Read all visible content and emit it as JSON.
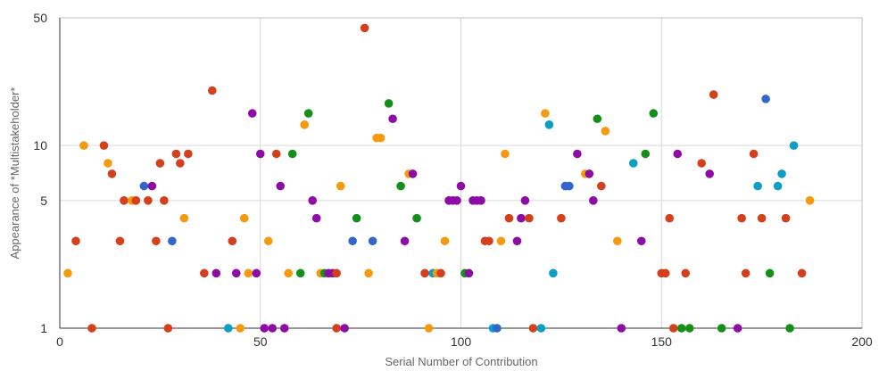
{
  "chart_data": {
    "type": "scatter",
    "title": "",
    "xlabel": "Serial Number of Contribution",
    "ylabel": "Appearance of *Multistakeholder*",
    "xlim": [
      0,
      200
    ],
    "ylim": [
      1,
      50
    ],
    "y_scale": "log",
    "grid": true,
    "x_ticks": [
      0,
      50,
      100,
      150,
      200
    ],
    "x_tick_labels": [
      "0",
      "50",
      "100",
      "150",
      "200"
    ],
    "y_ticks": [
      1,
      5,
      10,
      50
    ],
    "y_tick_labels": [
      "1",
      "5",
      "10",
      "50"
    ],
    "colors": {
      "red": "#d4401c",
      "orange": "#f59a0e",
      "purple": "#8e0ca6",
      "green": "#14901a",
      "blue": "#3366cc",
      "teal": "#0d9ec4"
    },
    "points": [
      {
        "x": 2,
        "y": 2,
        "c": "orange"
      },
      {
        "x": 4,
        "y": 3,
        "c": "red"
      },
      {
        "x": 6,
        "y": 10,
        "c": "orange"
      },
      {
        "x": 8,
        "y": 1,
        "c": "red"
      },
      {
        "x": 11,
        "y": 10,
        "c": "red"
      },
      {
        "x": 12,
        "y": 8,
        "c": "orange"
      },
      {
        "x": 13,
        "y": 7,
        "c": "red"
      },
      {
        "x": 15,
        "y": 3,
        "c": "red"
      },
      {
        "x": 16,
        "y": 5,
        "c": "red"
      },
      {
        "x": 18,
        "y": 5,
        "c": "orange"
      },
      {
        "x": 19,
        "y": 5,
        "c": "red"
      },
      {
        "x": 21,
        "y": 6,
        "c": "blue"
      },
      {
        "x": 22,
        "y": 5,
        "c": "red"
      },
      {
        "x": 23,
        "y": 6,
        "c": "purple"
      },
      {
        "x": 24,
        "y": 3,
        "c": "red"
      },
      {
        "x": 25,
        "y": 8,
        "c": "red"
      },
      {
        "x": 26,
        "y": 5,
        "c": "red"
      },
      {
        "x": 27,
        "y": 1,
        "c": "red"
      },
      {
        "x": 28,
        "y": 3,
        "c": "blue"
      },
      {
        "x": 29,
        "y": 9,
        "c": "red"
      },
      {
        "x": 30,
        "y": 8,
        "c": "red"
      },
      {
        "x": 31,
        "y": 4,
        "c": "orange"
      },
      {
        "x": 32,
        "y": 9,
        "c": "red"
      },
      {
        "x": 36,
        "y": 2,
        "c": "red"
      },
      {
        "x": 38,
        "y": 20,
        "c": "red"
      },
      {
        "x": 39,
        "y": 2,
        "c": "purple"
      },
      {
        "x": 42,
        "y": 1,
        "c": "teal"
      },
      {
        "x": 43,
        "y": 3,
        "c": "red"
      },
      {
        "x": 44,
        "y": 2,
        "c": "purple"
      },
      {
        "x": 45,
        "y": 1,
        "c": "orange"
      },
      {
        "x": 46,
        "y": 4,
        "c": "orange"
      },
      {
        "x": 47,
        "y": 2,
        "c": "orange"
      },
      {
        "x": 48,
        "y": 15,
        "c": "purple"
      },
      {
        "x": 49,
        "y": 2,
        "c": "purple"
      },
      {
        "x": 50,
        "y": 9,
        "c": "purple"
      },
      {
        "x": 51,
        "y": 1,
        "c": "purple"
      },
      {
        "x": 52,
        "y": 3,
        "c": "orange"
      },
      {
        "x": 53,
        "y": 1,
        "c": "purple"
      },
      {
        "x": 54,
        "y": 9,
        "c": "red"
      },
      {
        "x": 55,
        "y": 6,
        "c": "purple"
      },
      {
        "x": 56,
        "y": 1,
        "c": "purple"
      },
      {
        "x": 57,
        "y": 2,
        "c": "orange"
      },
      {
        "x": 58,
        "y": 9,
        "c": "green"
      },
      {
        "x": 60,
        "y": 2,
        "c": "green"
      },
      {
        "x": 61,
        "y": 13,
        "c": "orange"
      },
      {
        "x": 62,
        "y": 15,
        "c": "green"
      },
      {
        "x": 63,
        "y": 5,
        "c": "purple"
      },
      {
        "x": 64,
        "y": 4,
        "c": "purple"
      },
      {
        "x": 65,
        "y": 2,
        "c": "orange"
      },
      {
        "x": 66,
        "y": 2,
        "c": "green"
      },
      {
        "x": 67,
        "y": 2,
        "c": "purple"
      },
      {
        "x": 68,
        "y": 2,
        "c": "purple"
      },
      {
        "x": 69,
        "y": 2,
        "c": "red"
      },
      {
        "x": 69,
        "y": 1,
        "c": "red"
      },
      {
        "x": 70,
        "y": 6,
        "c": "orange"
      },
      {
        "x": 71,
        "y": 1,
        "c": "purple"
      },
      {
        "x": 73,
        "y": 3,
        "c": "blue"
      },
      {
        "x": 74,
        "y": 4,
        "c": "green"
      },
      {
        "x": 76,
        "y": 44,
        "c": "red"
      },
      {
        "x": 77,
        "y": 2,
        "c": "orange"
      },
      {
        "x": 78,
        "y": 3,
        "c": "blue"
      },
      {
        "x": 79,
        "y": 11,
        "c": "orange"
      },
      {
        "x": 80,
        "y": 11,
        "c": "orange"
      },
      {
        "x": 82,
        "y": 17,
        "c": "green"
      },
      {
        "x": 83,
        "y": 14,
        "c": "purple"
      },
      {
        "x": 85,
        "y": 6,
        "c": "green"
      },
      {
        "x": 86,
        "y": 3,
        "c": "purple"
      },
      {
        "x": 87,
        "y": 7,
        "c": "orange"
      },
      {
        "x": 88,
        "y": 7,
        "c": "purple"
      },
      {
        "x": 89,
        "y": 4,
        "c": "green"
      },
      {
        "x": 91,
        "y": 2,
        "c": "red"
      },
      {
        "x": 92,
        "y": 1,
        "c": "orange"
      },
      {
        "x": 93,
        "y": 2,
        "c": "teal"
      },
      {
        "x": 94,
        "y": 2,
        "c": "orange"
      },
      {
        "x": 95,
        "y": 2,
        "c": "red"
      },
      {
        "x": 96,
        "y": 3,
        "c": "orange"
      },
      {
        "x": 97,
        "y": 5,
        "c": "purple"
      },
      {
        "x": 98,
        "y": 5,
        "c": "purple"
      },
      {
        "x": 99,
        "y": 5,
        "c": "purple"
      },
      {
        "x": 100,
        "y": 6,
        "c": "purple"
      },
      {
        "x": 101,
        "y": 2,
        "c": "green"
      },
      {
        "x": 102,
        "y": 2,
        "c": "purple"
      },
      {
        "x": 103,
        "y": 5,
        "c": "purple"
      },
      {
        "x": 104,
        "y": 5,
        "c": "purple"
      },
      {
        "x": 105,
        "y": 5,
        "c": "purple"
      },
      {
        "x": 106,
        "y": 3,
        "c": "red"
      },
      {
        "x": 107,
        "y": 3,
        "c": "red"
      },
      {
        "x": 108,
        "y": 1,
        "c": "teal"
      },
      {
        "x": 109,
        "y": 1,
        "c": "blue"
      },
      {
        "x": 110,
        "y": 3,
        "c": "orange"
      },
      {
        "x": 111,
        "y": 9,
        "c": "orange"
      },
      {
        "x": 112,
        "y": 4,
        "c": "red"
      },
      {
        "x": 114,
        "y": 3,
        "c": "purple"
      },
      {
        "x": 115,
        "y": 4,
        "c": "purple"
      },
      {
        "x": 116,
        "y": 5,
        "c": "purple"
      },
      {
        "x": 117,
        "y": 4,
        "c": "red"
      },
      {
        "x": 118,
        "y": 1,
        "c": "red"
      },
      {
        "x": 120,
        "y": 1,
        "c": "teal"
      },
      {
        "x": 121,
        "y": 15,
        "c": "orange"
      },
      {
        "x": 122,
        "y": 13,
        "c": "teal"
      },
      {
        "x": 123,
        "y": 2,
        "c": "teal"
      },
      {
        "x": 125,
        "y": 4,
        "c": "red"
      },
      {
        "x": 126,
        "y": 6,
        "c": "blue"
      },
      {
        "x": 127,
        "y": 6,
        "c": "blue"
      },
      {
        "x": 129,
        "y": 9,
        "c": "purple"
      },
      {
        "x": 131,
        "y": 7,
        "c": "orange"
      },
      {
        "x": 132,
        "y": 7,
        "c": "purple"
      },
      {
        "x": 133,
        "y": 5,
        "c": "purple"
      },
      {
        "x": 134,
        "y": 14,
        "c": "green"
      },
      {
        "x": 135,
        "y": 6,
        "c": "red"
      },
      {
        "x": 136,
        "y": 12,
        "c": "orange"
      },
      {
        "x": 139,
        "y": 3,
        "c": "orange"
      },
      {
        "x": 140,
        "y": 1,
        "c": "purple"
      },
      {
        "x": 143,
        "y": 8,
        "c": "teal"
      },
      {
        "x": 145,
        "y": 3,
        "c": "purple"
      },
      {
        "x": 146,
        "y": 9,
        "c": "green"
      },
      {
        "x": 148,
        "y": 15,
        "c": "green"
      },
      {
        "x": 150,
        "y": 2,
        "c": "red"
      },
      {
        "x": 151,
        "y": 2,
        "c": "red"
      },
      {
        "x": 152,
        "y": 4,
        "c": "red"
      },
      {
        "x": 153,
        "y": 1,
        "c": "red"
      },
      {
        "x": 154,
        "y": 9,
        "c": "purple"
      },
      {
        "x": 155,
        "y": 1,
        "c": "green"
      },
      {
        "x": 156,
        "y": 2,
        "c": "red"
      },
      {
        "x": 157,
        "y": 1,
        "c": "green"
      },
      {
        "x": 160,
        "y": 8,
        "c": "red"
      },
      {
        "x": 162,
        "y": 7,
        "c": "purple"
      },
      {
        "x": 163,
        "y": 19,
        "c": "red"
      },
      {
        "x": 165,
        "y": 1,
        "c": "green"
      },
      {
        "x": 169,
        "y": 1,
        "c": "purple"
      },
      {
        "x": 170,
        "y": 4,
        "c": "red"
      },
      {
        "x": 171,
        "y": 2,
        "c": "red"
      },
      {
        "x": 173,
        "y": 9,
        "c": "red"
      },
      {
        "x": 174,
        "y": 6,
        "c": "teal"
      },
      {
        "x": 175,
        "y": 4,
        "c": "red"
      },
      {
        "x": 176,
        "y": 18,
        "c": "blue"
      },
      {
        "x": 177,
        "y": 2,
        "c": "green"
      },
      {
        "x": 179,
        "y": 6,
        "c": "teal"
      },
      {
        "x": 180,
        "y": 7,
        "c": "teal"
      },
      {
        "x": 181,
        "y": 4,
        "c": "red"
      },
      {
        "x": 182,
        "y": 1,
        "c": "green"
      },
      {
        "x": 183,
        "y": 10,
        "c": "teal"
      },
      {
        "x": 185,
        "y": 2,
        "c": "red"
      },
      {
        "x": 187,
        "y": 5,
        "c": "orange"
      }
    ]
  }
}
